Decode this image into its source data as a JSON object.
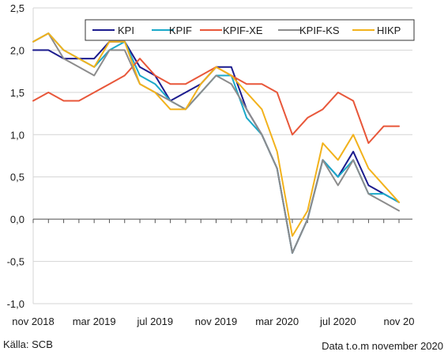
{
  "chart_data": {
    "type": "line",
    "title": "",
    "xlabel": "",
    "ylabel": "",
    "ylim": [
      -1.0,
      2.5
    ],
    "yticks": [
      -1.0,
      -0.5,
      0.0,
      0.5,
      1.0,
      1.5,
      2.0,
      2.5
    ],
    "ytick_labels": [
      "-1,0",
      "-0,5",
      "0,0",
      "0,5",
      "1,0",
      "1,5",
      "2,0",
      "2,5"
    ],
    "grid": true,
    "legend_position": "top-right",
    "xtick_labels": [
      {
        "index": 0,
        "label": "nov 2018"
      },
      {
        "index": 4,
        "label": "mar 2019"
      },
      {
        "index": 8,
        "label": "jul 2019"
      },
      {
        "index": 12,
        "label": "nov 2019"
      },
      {
        "index": 16,
        "label": "mar 2020"
      },
      {
        "index": 20,
        "label": "jul 2020"
      },
      {
        "index": 24,
        "label": "nov 20"
      }
    ],
    "x": [
      "2018-11",
      "2018-12",
      "2019-01",
      "2019-02",
      "2019-03",
      "2019-04",
      "2019-05",
      "2019-06",
      "2019-07",
      "2019-08",
      "2019-09",
      "2019-10",
      "2019-11",
      "2019-12",
      "2020-01",
      "2020-02",
      "2020-03",
      "2020-04",
      "2020-05",
      "2020-06",
      "2020-07",
      "2020-08",
      "2020-09",
      "2020-10",
      "2020-11"
    ],
    "series": [
      {
        "name": "KPI",
        "color": "#1c1c8e",
        "values": [
          2.0,
          2.0,
          1.9,
          1.9,
          1.9,
          2.1,
          2.1,
          1.8,
          1.7,
          1.4,
          1.5,
          1.6,
          1.8,
          1.8,
          1.3,
          1.0,
          0.6,
          -0.4,
          0.0,
          0.7,
          0.5,
          0.8,
          0.4,
          0.3,
          0.2
        ]
      },
      {
        "name": "KPIF",
        "color": "#1ba9c9",
        "values": [
          2.1,
          2.2,
          2.0,
          1.9,
          1.8,
          2.0,
          2.1,
          1.7,
          1.6,
          1.4,
          1.3,
          1.5,
          1.7,
          1.7,
          1.2,
          1.0,
          0.6,
          -0.4,
          0.0,
          0.7,
          0.5,
          0.7,
          0.3,
          0.3,
          0.2
        ]
      },
      {
        "name": "KPIF-XE",
        "color": "#e8573a",
        "values": [
          1.4,
          1.5,
          1.4,
          1.4,
          1.5,
          1.6,
          1.7,
          1.9,
          1.7,
          1.6,
          1.6,
          1.7,
          1.8,
          1.7,
          1.6,
          1.6,
          1.5,
          1.0,
          1.2,
          1.3,
          1.5,
          1.4,
          0.9,
          1.1,
          1.1
        ]
      },
      {
        "name": "KPIF-KS",
        "color": "#8c8c8c",
        "values": [
          2.1,
          2.2,
          1.9,
          1.8,
          1.7,
          2.0,
          2.0,
          1.6,
          1.5,
          1.4,
          1.3,
          1.5,
          1.7,
          1.6,
          1.3,
          1.0,
          0.6,
          -0.4,
          0.0,
          0.7,
          0.4,
          0.7,
          0.3,
          0.2,
          0.1
        ]
      },
      {
        "name": "HIKP",
        "color": "#f2b21c",
        "values": [
          2.1,
          2.2,
          2.0,
          1.9,
          1.8,
          2.1,
          2.1,
          1.6,
          1.5,
          1.3,
          1.3,
          1.6,
          1.8,
          1.7,
          1.5,
          1.3,
          0.8,
          -0.2,
          0.1,
          0.9,
          0.7,
          1.0,
          0.6,
          0.4,
          0.2
        ]
      }
    ]
  },
  "footer": {
    "source": "Källa: SCB",
    "note": "Data t.o.m november 2020"
  }
}
